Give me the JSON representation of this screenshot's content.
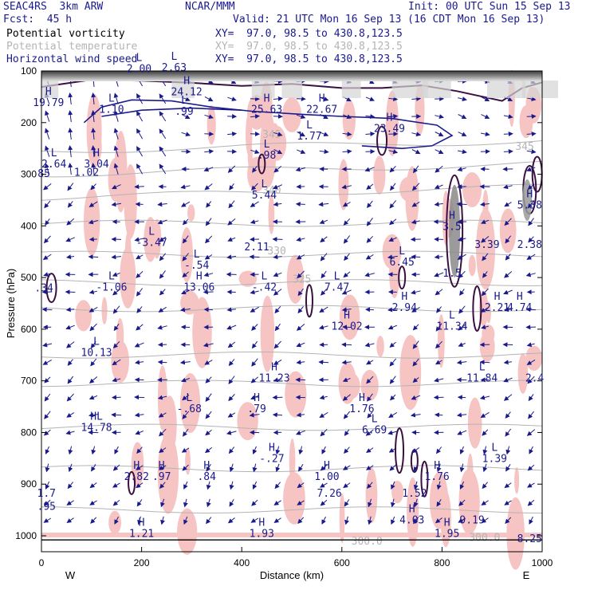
{
  "header": {
    "model": "SEAC4RS  3km ARW",
    "center": "NCAR/MMM",
    "init": "Init: 00 UTC Sun 15 Sep 13",
    "fcst": "Fcst:  45 h",
    "valid": "Valid: 21 UTC Mon 16 Sep 13 (16 CDT Mon 16 Sep 13)",
    "fields": [
      {
        "name": "Potential vorticity",
        "xy": "XY=  97.0, 98.5 to 430.8,123.5"
      },
      {
        "name": "Potential temperature",
        "xy": "XY=  97.0, 98.5 to 430.8,123.5"
      },
      {
        "name": "Horizontal wind speed",
        "xy": "XY=  97.0, 98.5 to 430.8,123.5"
      }
    ]
  },
  "chart_data": {
    "type": "cross-section",
    "xlabel": "Distance (km)",
    "ylabel": "Pressure (hPa)",
    "xlim": [
      0,
      1000
    ],
    "ylim": [
      1000,
      100
    ],
    "x_ticks": [
      "0",
      "200",
      "400",
      "600",
      "800",
      "1000"
    ],
    "y_ticks": [
      "100",
      "200",
      "300",
      "400",
      "500",
      "600",
      "700",
      "800",
      "900",
      "1000"
    ],
    "x_end_labels": {
      "left": "W",
      "right": "E"
    },
    "series": [
      {
        "name": "Potential vorticity",
        "color": "#1a1a8c"
      },
      {
        "name": "Potential temperature",
        "color": "#b4b4b4"
      },
      {
        "name": "Horizontal wind speed",
        "color": "#1a1a8c"
      }
    ],
    "theta_labels": [
      {
        "x": 460,
        "p": 338,
        "text": "340"
      },
      {
        "x": 470,
        "p": 455,
        "text": "330"
      },
      {
        "x": 520,
        "p": 510,
        "text": "325"
      },
      {
        "x": 460,
        "p": 230,
        "text": "345"
      },
      {
        "x": 965,
        "p": 253,
        "text": "345"
      },
      {
        "x": 650,
        "p": 1017,
        "text": "300.0"
      },
      {
        "x": 885,
        "p": 1010,
        "text": "300.0"
      }
    ],
    "extrema": [
      {
        "x": 14,
        "p": 168,
        "kind": "H",
        "value": "19.79"
      },
      {
        "x": 140,
        "p": 181,
        "kind": "L",
        "value": "1.10"
      },
      {
        "x": 195,
        "p": 102,
        "kind": "L",
        "value": "2.00"
      },
      {
        "x": 265,
        "p": 100,
        "kind": "L",
        "value": "2.63"
      },
      {
        "x": 290,
        "p": 147,
        "kind": "H",
        "value": "24.12"
      },
      {
        "x": 285,
        "p": 185,
        "kind": "L",
        "value": ".99"
      },
      {
        "x": 450,
        "p": 181,
        "kind": "H",
        "value": "25.63"
      },
      {
        "x": 560,
        "p": 181,
        "kind": "H",
        "value": "22.67"
      },
      {
        "x": 535,
        "p": 233,
        "kind": "L",
        "value": "1.77"
      },
      {
        "x": 695,
        "p": 218,
        "kind": "H",
        "value": "23.49"
      },
      {
        "x": 450,
        "p": 270,
        "kind": "L",
        "value": ".98"
      },
      {
        "x": 25,
        "p": 287,
        "kind": "L",
        "value": "2.64"
      },
      {
        "x": 5,
        "p": 305,
        "kind": "",
        "value": "85"
      },
      {
        "x": 110,
        "p": 287,
        "kind": "H",
        "value": "3.04"
      },
      {
        "x": 90,
        "p": 303,
        "kind": "",
        "value": "1.02"
      },
      {
        "x": 445,
        "p": 347,
        "kind": "L",
        "value": "5.44"
      },
      {
        "x": 975,
        "p": 366,
        "kind": "H",
        "value": "5.38"
      },
      {
        "x": 820,
        "p": 408,
        "kind": "H",
        "value": "3.5"
      },
      {
        "x": 890,
        "p": 443,
        "kind": "",
        "value": "3.39"
      },
      {
        "x": 975,
        "p": 443,
        "kind": "",
        "value": "2.38"
      },
      {
        "x": 220,
        "p": 439,
        "kind": "L",
        "value": "-3.47"
      },
      {
        "x": 430,
        "p": 447,
        "kind": "",
        "value": "2.11"
      },
      {
        "x": 310,
        "p": 483,
        "kind": "L",
        "value": "-.54"
      },
      {
        "x": 720,
        "p": 477,
        "kind": "L",
        "value": "6.45"
      },
      {
        "x": 820,
        "p": 498,
        "kind": "",
        "value": "1.5"
      },
      {
        "x": 5,
        "p": 527,
        "kind": "",
        "value": ".34"
      },
      {
        "x": 140,
        "p": 525,
        "kind": "L",
        "value": "-1.06"
      },
      {
        "x": 315,
        "p": 525,
        "kind": "H",
        "value": "13.06"
      },
      {
        "x": 445,
        "p": 525,
        "kind": "L",
        "value": "-.42"
      },
      {
        "x": 590,
        "p": 525,
        "kind": "L",
        "value": "7.47"
      },
      {
        "x": 725,
        "p": 565,
        "kind": "H",
        "value": "2.94"
      },
      {
        "x": 910,
        "p": 565,
        "kind": "H",
        "value": "2.21"
      },
      {
        "x": 955,
        "p": 565,
        "kind": "H",
        "value": "4.74"
      },
      {
        "x": 610,
        "p": 601,
        "kind": "H",
        "value": "12.02"
      },
      {
        "x": 820,
        "p": 601,
        "kind": "L",
        "value": "11.34"
      },
      {
        "x": 110,
        "p": 652,
        "kind": "L",
        "value": "10.13"
      },
      {
        "x": 465,
        "p": 701,
        "kind": "H",
        "value": "11.23"
      },
      {
        "x": 880,
        "p": 701,
        "kind": "L",
        "value": "11.84"
      },
      {
        "x": 985,
        "p": 701,
        "kind": "",
        "value": "2.4"
      },
      {
        "x": 295,
        "p": 761,
        "kind": "L",
        "value": "-.68"
      },
      {
        "x": 430,
        "p": 761,
        "kind": "H",
        "value": ".79"
      },
      {
        "x": 640,
        "p": 761,
        "kind": "H",
        "value": "1.76"
      },
      {
        "x": 665,
        "p": 802,
        "kind": "L",
        "value": "6.69"
      },
      {
        "x": 110,
        "p": 797,
        "kind": "HL",
        "value": "14.78"
      },
      {
        "x": 460,
        "p": 857,
        "kind": "H",
        "value": "-.27"
      },
      {
        "x": 905,
        "p": 857,
        "kind": "L",
        "value": "1.39"
      },
      {
        "x": 190,
        "p": 892,
        "kind": "H",
        "value": "2.82"
      },
      {
        "x": 240,
        "p": 892,
        "kind": "H",
        "value": ".97"
      },
      {
        "x": 330,
        "p": 892,
        "kind": "H",
        "value": ".84"
      },
      {
        "x": 570,
        "p": 892,
        "kind": "H",
        "value": "1.00"
      },
      {
        "x": 790,
        "p": 892,
        "kind": "H",
        "value": "1.76"
      },
      {
        "x": 575,
        "p": 924,
        "kind": "",
        "value": "7.26"
      },
      {
        "x": 745,
        "p": 924,
        "kind": "",
        "value": "1.52"
      },
      {
        "x": 10,
        "p": 924,
        "kind": "",
        "value": "1.7"
      },
      {
        "x": 10,
        "p": 950,
        "kind": "",
        "value": ".95"
      },
      {
        "x": 740,
        "p": 976,
        "kind": "H",
        "value": "4.03"
      },
      {
        "x": 860,
        "p": 976,
        "kind": "",
        "value": "9.19"
      },
      {
        "x": 200,
        "p": 1002,
        "kind": "H",
        "value": "1.21"
      },
      {
        "x": 440,
        "p": 1002,
        "kind": "H",
        "value": "1.93"
      },
      {
        "x": 810,
        "p": 1002,
        "kind": "H",
        "value": "1.95"
      },
      {
        "x": 975,
        "p": 1012,
        "kind": "",
        "value": "8.25"
      }
    ]
  }
}
